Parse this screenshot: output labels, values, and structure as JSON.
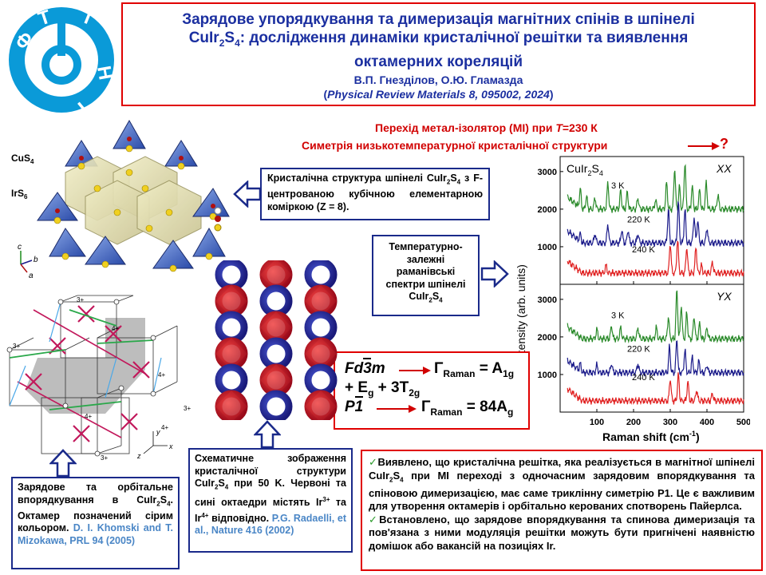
{
  "title": {
    "line1": "Зарядове упорядкування та димеризація магнітних спінів в шпінелі",
    "line2_a": "CuIr",
    "line2_sub2": "2",
    "line2_b": "S",
    "line2_sub4": "4",
    "line2_c": ": дослідження динаміки кристалічної решітки та виявлення",
    "line3": "октамерних кореляцій",
    "authors": "В.П. Гнезділов, О.Ю. Гламазда",
    "journal_open": "(",
    "journal": "Physical Review Materials 8, 095002, 2024",
    "journal_close": ")"
  },
  "logo": {
    "letters": [
      "Ф",
      "Т",
      "І",
      "Н",
      "Т"
    ],
    "color": "#0a9ad8"
  },
  "headline": {
    "mi": "Перехід метал-ізолятор (MI) при ",
    "mi_T": "T",
    "mi_val": "=230 К",
    "sym": "Симетрія низькотемпературної кристалічної структури",
    "question": "?"
  },
  "crystal": {
    "label_cus4": "CuS",
    "label_cus4_sub": "4",
    "label_irs6": "IrS",
    "label_irs6_sub": "6",
    "axis_c": "c",
    "axis_b": "b",
    "axis_a": "a"
  },
  "caption_structure": {
    "p1": "Кристалічна структура шпінелі CuIr",
    "s1": "2",
    "p2": "S",
    "s2": "4",
    "p3": " з F-центрованою кубічною елементарною коміркою (Z = 8)."
  },
  "caption_raman": {
    "p1": "Температурно-залежні раманівські спектри шпінелі CuIr",
    "s1": "2",
    "p2": "S",
    "s2": "4"
  },
  "formula": {
    "g1": "Fd3m",
    "raman1": "Γ",
    "raman1_sub": "Raman",
    "eq1": " = A",
    "eq1_sub": "1g",
    "line2": "+ E",
    "line2_sub": "g",
    "line2b": " + 3T",
    "line2b_sub": "2g",
    "g2": "P1",
    "raman2": "Γ",
    "raman2_sub": "Raman",
    "eq2": " = 84A",
    "eq2_sub": "g"
  },
  "caption_orbital": {
    "p1": "Зарядове та орбітальне впорядкування в CuIr",
    "s1": "2",
    "p2": "S",
    "s2": "4",
    "p3": ". Октамер позначений сірим кольором. ",
    "ref": "D. I. Khomski and T. Mizokawa, PRL 94 (2005)"
  },
  "caption_octa": {
    "p1": "Схематичне зображення кристалічної структури CuIr",
    "s1": "2",
    "p2": "S",
    "s2": "4",
    "p3": " при 50 K. Червоні та сині октаедри містять Ir",
    "sup1": "3+",
    "p4": " та Ir",
    "sup2": "4+",
    "p5": " відповідно. ",
    "ref": "P.G. Radaelli, et al., Nature 416 (2002)"
  },
  "lattice_labels": [
    "3+",
    "4+",
    "4+",
    "3+",
    "4+",
    "3+",
    "3+",
    "4+"
  ],
  "lattice_axes": {
    "x": "x",
    "y": "y",
    "z": "z"
  },
  "conclusions": {
    "c1_a": "Виявлено, що кристалічна решітка, яка реалізується в магнітної шпінелі CuIr",
    "c1_s1": "2",
    "c1_b": "S",
    "c1_s2": "4",
    "c1_c": " при MI переході з одночасним зарядовим впорядкування та спіновою димеризацією, має саме триклінну симетрію P1. Це є важливим для утворення октамерів і орбітально керованих спотворень Пайерлса.",
    "c2": "Встановлено, що зарядове впорядкування та спинова димеризація та пов'язана з ними модуляція решітки можуть бути пригнічені наявністю домішок або вакансій на позиціях Ir."
  },
  "chart_data": {
    "type": "line",
    "xlabel": "Raman shift (cm",
    "xlabel_sup": "-1",
    "xlabel_close": ")",
    "ylabel": "Intensity (arb. units)",
    "xlim": [
      0,
      500
    ],
    "x_ticks": [
      100,
      200,
      300,
      400,
      500
    ],
    "y_ticks": [
      1000,
      2000,
      3000
    ],
    "ylim": [
      0,
      3400
    ],
    "panels": [
      {
        "label": "CuIr",
        "label_sub1": "2",
        "label_b": "S",
        "label_sub2": "4",
        "pol": "XX",
        "series": [
          {
            "name": "3 K",
            "color": "#2a8a2a",
            "baseline": 2000,
            "peaks": [
              [
                55,
                500
              ],
              [
                72,
                350
              ],
              [
                95,
                300
              ],
              [
                130,
                700
              ],
              [
                165,
                500
              ],
              [
                183,
                450
              ],
              [
                212,
                300
              ],
              [
                260,
                250
              ],
              [
                290,
                700
              ],
              [
                312,
                1100
              ],
              [
                325,
                600
              ],
              [
                340,
                1250
              ],
              [
                360,
                600
              ],
              [
                380,
                500
              ],
              [
                398,
                700
              ],
              [
                430,
                400
              ]
            ]
          },
          {
            "name": "220 K",
            "color": "#1a1a8a",
            "baseline": 1100,
            "peaks": [
              [
                55,
                200
              ],
              [
                95,
                250
              ],
              [
                130,
                500
              ],
              [
                168,
                350
              ],
              [
                185,
                350
              ],
              [
                212,
                250
              ],
              [
                295,
                900
              ],
              [
                322,
                1100
              ],
              [
                340,
                900
              ],
              [
                365,
                700
              ],
              [
                375,
                600
              ],
              [
                400,
                400
              ]
            ]
          },
          {
            "name": "240 K",
            "color": "#e02020",
            "baseline": 300,
            "peaks": [
              [
                125,
                200
              ],
              [
                300,
                800
              ],
              [
                320,
                900
              ],
              [
                345,
                700
              ],
              [
                370,
                700
              ],
              [
                385,
                200
              ],
              [
                415,
                300
              ]
            ]
          }
        ],
        "labels_pos": []
      },
      {
        "label": "",
        "pol": "YX",
        "series": [
          {
            "name": "3 K",
            "color": "#2a8a2a",
            "baseline": 1950,
            "peaks": [
              [
                100,
                250
              ],
              [
                140,
                350
              ],
              [
                165,
                300
              ],
              [
                212,
                300
              ],
              [
                262,
                300
              ],
              [
                295,
                600
              ],
              [
                318,
                1300
              ],
              [
                330,
                900
              ],
              [
                345,
                700
              ],
              [
                365,
                600
              ],
              [
                380,
                400
              ],
              [
                400,
                300
              ]
            ]
          },
          {
            "name": "220 K",
            "color": "#1a1a8a",
            "baseline": 1050,
            "peaks": [
              [
                55,
                200
              ],
              [
                100,
                200
              ],
              [
                140,
                250
              ],
              [
                212,
                250
              ],
              [
                298,
                700
              ],
              [
                318,
                900
              ],
              [
                340,
                600
              ],
              [
                360,
                400
              ],
              [
                378,
                300
              ],
              [
                400,
                200
              ]
            ]
          },
          {
            "name": "240 K",
            "color": "#e02020",
            "baseline": 300,
            "peaks": [
              [
                300,
                600
              ],
              [
                322,
                700
              ],
              [
                348,
                500
              ],
              [
                372,
                300
              ],
              [
                415,
                200
              ]
            ]
          }
        ]
      }
    ]
  }
}
